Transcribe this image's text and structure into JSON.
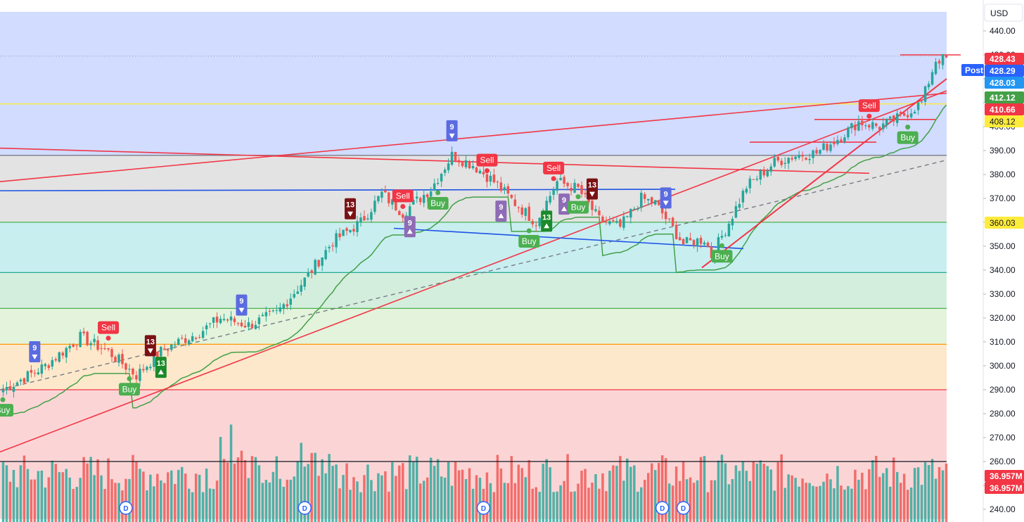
{
  "currency_label": "USD",
  "post_label": "Post",
  "chart_data": {
    "type": "candlestick",
    "y_range": [
      236,
      448
    ],
    "y_ticks": [
      240,
      250,
      260,
      270,
      280,
      290,
      300,
      310,
      320,
      330,
      340,
      350,
      360,
      370,
      380,
      390,
      400,
      410,
      420,
      430,
      440
    ],
    "y_tick_labels": [
      "240.00",
      "250.00",
      "260.00",
      "270.00",
      "280.00",
      "290.00",
      "300.00",
      "310.00",
      "320.00",
      "330.00",
      "340.00",
      "350.00",
      "360.00",
      "370.00",
      "380.00",
      "390.00",
      "400.00",
      "410.00",
      "420.00",
      "430.00",
      "440.00"
    ],
    "candle_count": 270,
    "price_path_anchors": [
      [
        0,
        290
      ],
      [
        12,
        300
      ],
      [
        22,
        312
      ],
      [
        30,
        306
      ],
      [
        38,
        296
      ],
      [
        45,
        306
      ],
      [
        50,
        310
      ],
      [
        56,
        314
      ],
      [
        62,
        320
      ],
      [
        70,
        317
      ],
      [
        78,
        322
      ],
      [
        86,
        336
      ],
      [
        94,
        352
      ],
      [
        102,
        360
      ],
      [
        108,
        372
      ],
      [
        114,
        364
      ],
      [
        122,
        374
      ],
      [
        128,
        388
      ],
      [
        134,
        384
      ],
      [
        140,
        377
      ],
      [
        146,
        368
      ],
      [
        152,
        360
      ],
      [
        158,
        377
      ],
      [
        164,
        374
      ],
      [
        170,
        361
      ],
      [
        176,
        358
      ],
      [
        182,
        370
      ],
      [
        186,
        368
      ],
      [
        194,
        351
      ],
      [
        200,
        353
      ],
      [
        202,
        346
      ],
      [
        206,
        357
      ],
      [
        212,
        375
      ],
      [
        220,
        385
      ],
      [
        226,
        388
      ],
      [
        232,
        389
      ],
      [
        238,
        395
      ],
      [
        244,
        402
      ],
      [
        250,
        400
      ],
      [
        256,
        404
      ],
      [
        262,
        410
      ],
      [
        266,
        428
      ],
      [
        269,
        428.29
      ]
    ],
    "volume_axis_max": 60,
    "volume_last": "36.957M",
    "horizontal_levels": [
      {
        "price": 388,
        "color": "#787b86"
      },
      {
        "price": 360.03,
        "color": "#4caf50"
      },
      {
        "price": 339,
        "color": "#22ab94"
      },
      {
        "price": 324,
        "color": "#4caf50"
      },
      {
        "price": 309,
        "color": "#ff9800"
      },
      {
        "price": 290,
        "color": "#f23645"
      },
      {
        "price": 260,
        "color": "#131722"
      },
      {
        "price": 409.5,
        "color": "#ffeb3b"
      }
    ],
    "price_labels": [
      {
        "text": "428.43",
        "color": "#f23645"
      },
      {
        "text": "428.29",
        "color": "#2962ff"
      },
      {
        "text": "428.03",
        "color": "#2196f3"
      },
      {
        "text": "412.12",
        "color": "#43a047"
      },
      {
        "text": "410.66",
        "color": "#f23645"
      },
      {
        "text": "408.12",
        "color": "#ffeb3b"
      },
      {
        "text": "360.03",
        "color": "#ffeb3b"
      },
      {
        "text": "36.957M",
        "color": "#f23645"
      },
      {
        "text": "36.957M",
        "color": "#f23645"
      }
    ],
    "signals": [
      {
        "type": "buy",
        "text": "Buy",
        "index": 36
      },
      {
        "type": "buy",
        "text": "Buy",
        "index": 124
      },
      {
        "type": "buy",
        "text": "Buy",
        "index": 150
      },
      {
        "type": "buy",
        "text": "Buy",
        "index": 164
      },
      {
        "type": "buy",
        "text": "Buy",
        "index": 205
      },
      {
        "type": "buy",
        "text": "Buy",
        "index": 258
      },
      {
        "type": "buy",
        "text": "Buy",
        "index": 0
      },
      {
        "type": "sell",
        "text": "Sell",
        "index": 30
      },
      {
        "type": "sell",
        "text": "Sell",
        "index": 114
      },
      {
        "type": "sell",
        "text": "Sell",
        "index": 138
      },
      {
        "type": "sell",
        "text": "Sell",
        "index": 157
      },
      {
        "type": "sell",
        "text": "Sell",
        "index": 247
      }
    ],
    "td_counts": [
      {
        "text": "9",
        "kind": "down",
        "index": 9
      },
      {
        "text": "13",
        "kind": "down",
        "index": 42
      },
      {
        "text": "13",
        "kind": "up",
        "index": 45
      },
      {
        "text": "9",
        "kind": "down",
        "index": 68
      },
      {
        "text": "13",
        "kind": "down",
        "index": 99
      },
      {
        "text": "9",
        "kind": "up",
        "index": 116
      },
      {
        "text": "9",
        "kind": "down",
        "index": 128
      },
      {
        "text": "9",
        "kind": "up",
        "index": 142
      },
      {
        "text": "13",
        "kind": "up",
        "index": 155
      },
      {
        "text": "9",
        "kind": "up",
        "index": 160
      },
      {
        "text": "13",
        "kind": "down",
        "index": 168
      },
      {
        "text": "9",
        "kind": "down",
        "index": 189
      }
    ],
    "dividend_markers": {
      "text": "D",
      "indices": [
        35,
        86,
        137,
        188,
        194
      ]
    }
  }
}
